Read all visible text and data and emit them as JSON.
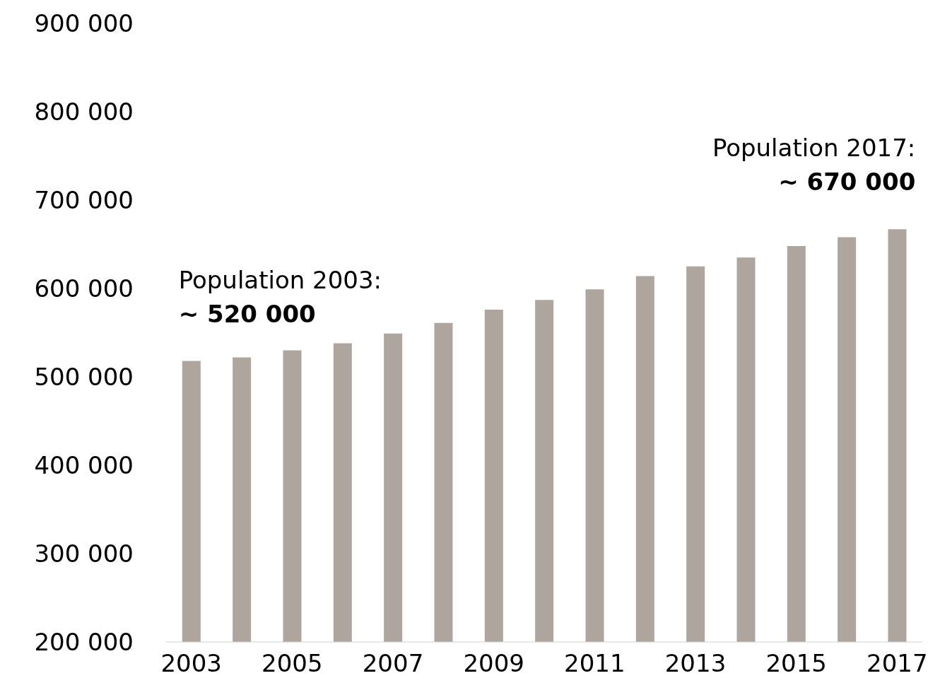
{
  "chart_data": {
    "type": "bar",
    "categories": [
      "2003",
      null,
      "2005",
      null,
      "2007",
      null,
      "2009",
      null,
      "2011",
      null,
      "2013",
      null,
      "2015",
      null,
      "2017"
    ],
    "values": [
      518000,
      522000,
      530000,
      538000,
      549000,
      561000,
      576000,
      587000,
      599000,
      614000,
      625000,
      635000,
      648000,
      658000,
      667000
    ],
    "color": "#ada59e",
    "ylim": [
      200000,
      900000
    ],
    "yticks": [
      {
        "value": 200000,
        "label": "200 000"
      },
      {
        "value": 300000,
        "label": "300 000"
      },
      {
        "value": 400000,
        "label": "400 000"
      },
      {
        "value": 500000,
        "label": "500 000"
      },
      {
        "value": 600000,
        "label": "600 000"
      },
      {
        "value": 700000,
        "label": "700 000"
      },
      {
        "value": 800000,
        "label": "800 000"
      },
      {
        "value": 900000,
        "label": "900 000"
      }
    ],
    "grid": false,
    "annotations": [
      {
        "text": "Population 2003:\n~ 520 000",
        "x": "2003",
        "y": 520000
      },
      {
        "text": "Population 2017:\n~ 670 000",
        "x": "2017",
        "y": 670000
      }
    ]
  }
}
